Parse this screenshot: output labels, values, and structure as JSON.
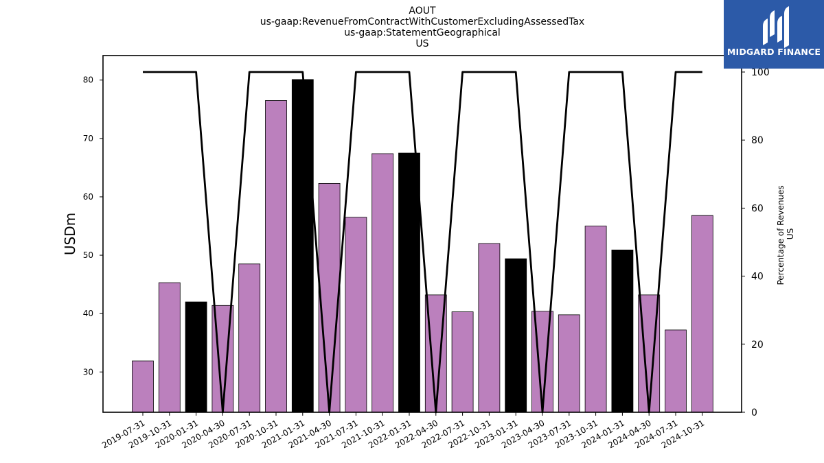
{
  "chart_data": {
    "type": "bar",
    "title_lines": [
      "AOUT",
      "us-gaap:RevenueFromContractWithCustomerExcludingAssessedTax",
      "us-gaap:StatementGeographical",
      "US"
    ],
    "ylabel": "USDm",
    "ylabel_right_lines": [
      "Percentage of Revenues",
      "US"
    ],
    "categories": [
      "2019-07-31",
      "2019-10-31",
      "2020-01-31",
      "2020-04-30",
      "2020-07-31",
      "2020-10-31",
      "2021-01-31",
      "2021-04-30",
      "2021-07-31",
      "2021-10-31",
      "2022-01-31",
      "2022-04-30",
      "2022-07-31",
      "2022-10-31",
      "2023-01-31",
      "2023-04-30",
      "2023-07-31",
      "2023-10-31",
      "2024-01-31",
      "2024-04-30",
      "2024-07-31",
      "2024-10-31"
    ],
    "values": [
      31.9,
      45.3,
      42.0,
      41.4,
      48.5,
      76.5,
      80.1,
      62.3,
      56.5,
      67.4,
      67.5,
      43.2,
      40.3,
      52.0,
      49.4,
      40.4,
      39.8,
      55.0,
      50.9,
      43.2,
      37.2,
      56.8
    ],
    "bar_colors": [
      "#bb80bd",
      "#bb80bd",
      "#000000",
      "#bb80bd",
      "#bb80bd",
      "#bb80bd",
      "#000000",
      "#bb80bd",
      "#bb80bd",
      "#bb80bd",
      "#000000",
      "#bb80bd",
      "#bb80bd",
      "#bb80bd",
      "#000000",
      "#bb80bd",
      "#bb80bd",
      "#bb80bd",
      "#000000",
      "#bb80bd",
      "#bb80bd",
      "#bb80bd"
    ],
    "line_series": {
      "axis": "right",
      "values": [
        100,
        100,
        100,
        0,
        100,
        100,
        100,
        0,
        100,
        100,
        100,
        0,
        100,
        100,
        100,
        0,
        100,
        100,
        100,
        0,
        100,
        100
      ],
      "color": "#000000"
    },
    "ylim": [
      23.1,
      84.2
    ],
    "yticks": [
      30,
      40,
      50,
      60,
      70,
      80
    ],
    "ylim_right": [
      0,
      100
    ],
    "yticks_right": [
      0,
      20,
      40,
      60,
      80,
      100
    ],
    "grid": false
  },
  "logo": {
    "text": "MIDGARD FINANCE",
    "bg_color": "#2c5aa8"
  }
}
